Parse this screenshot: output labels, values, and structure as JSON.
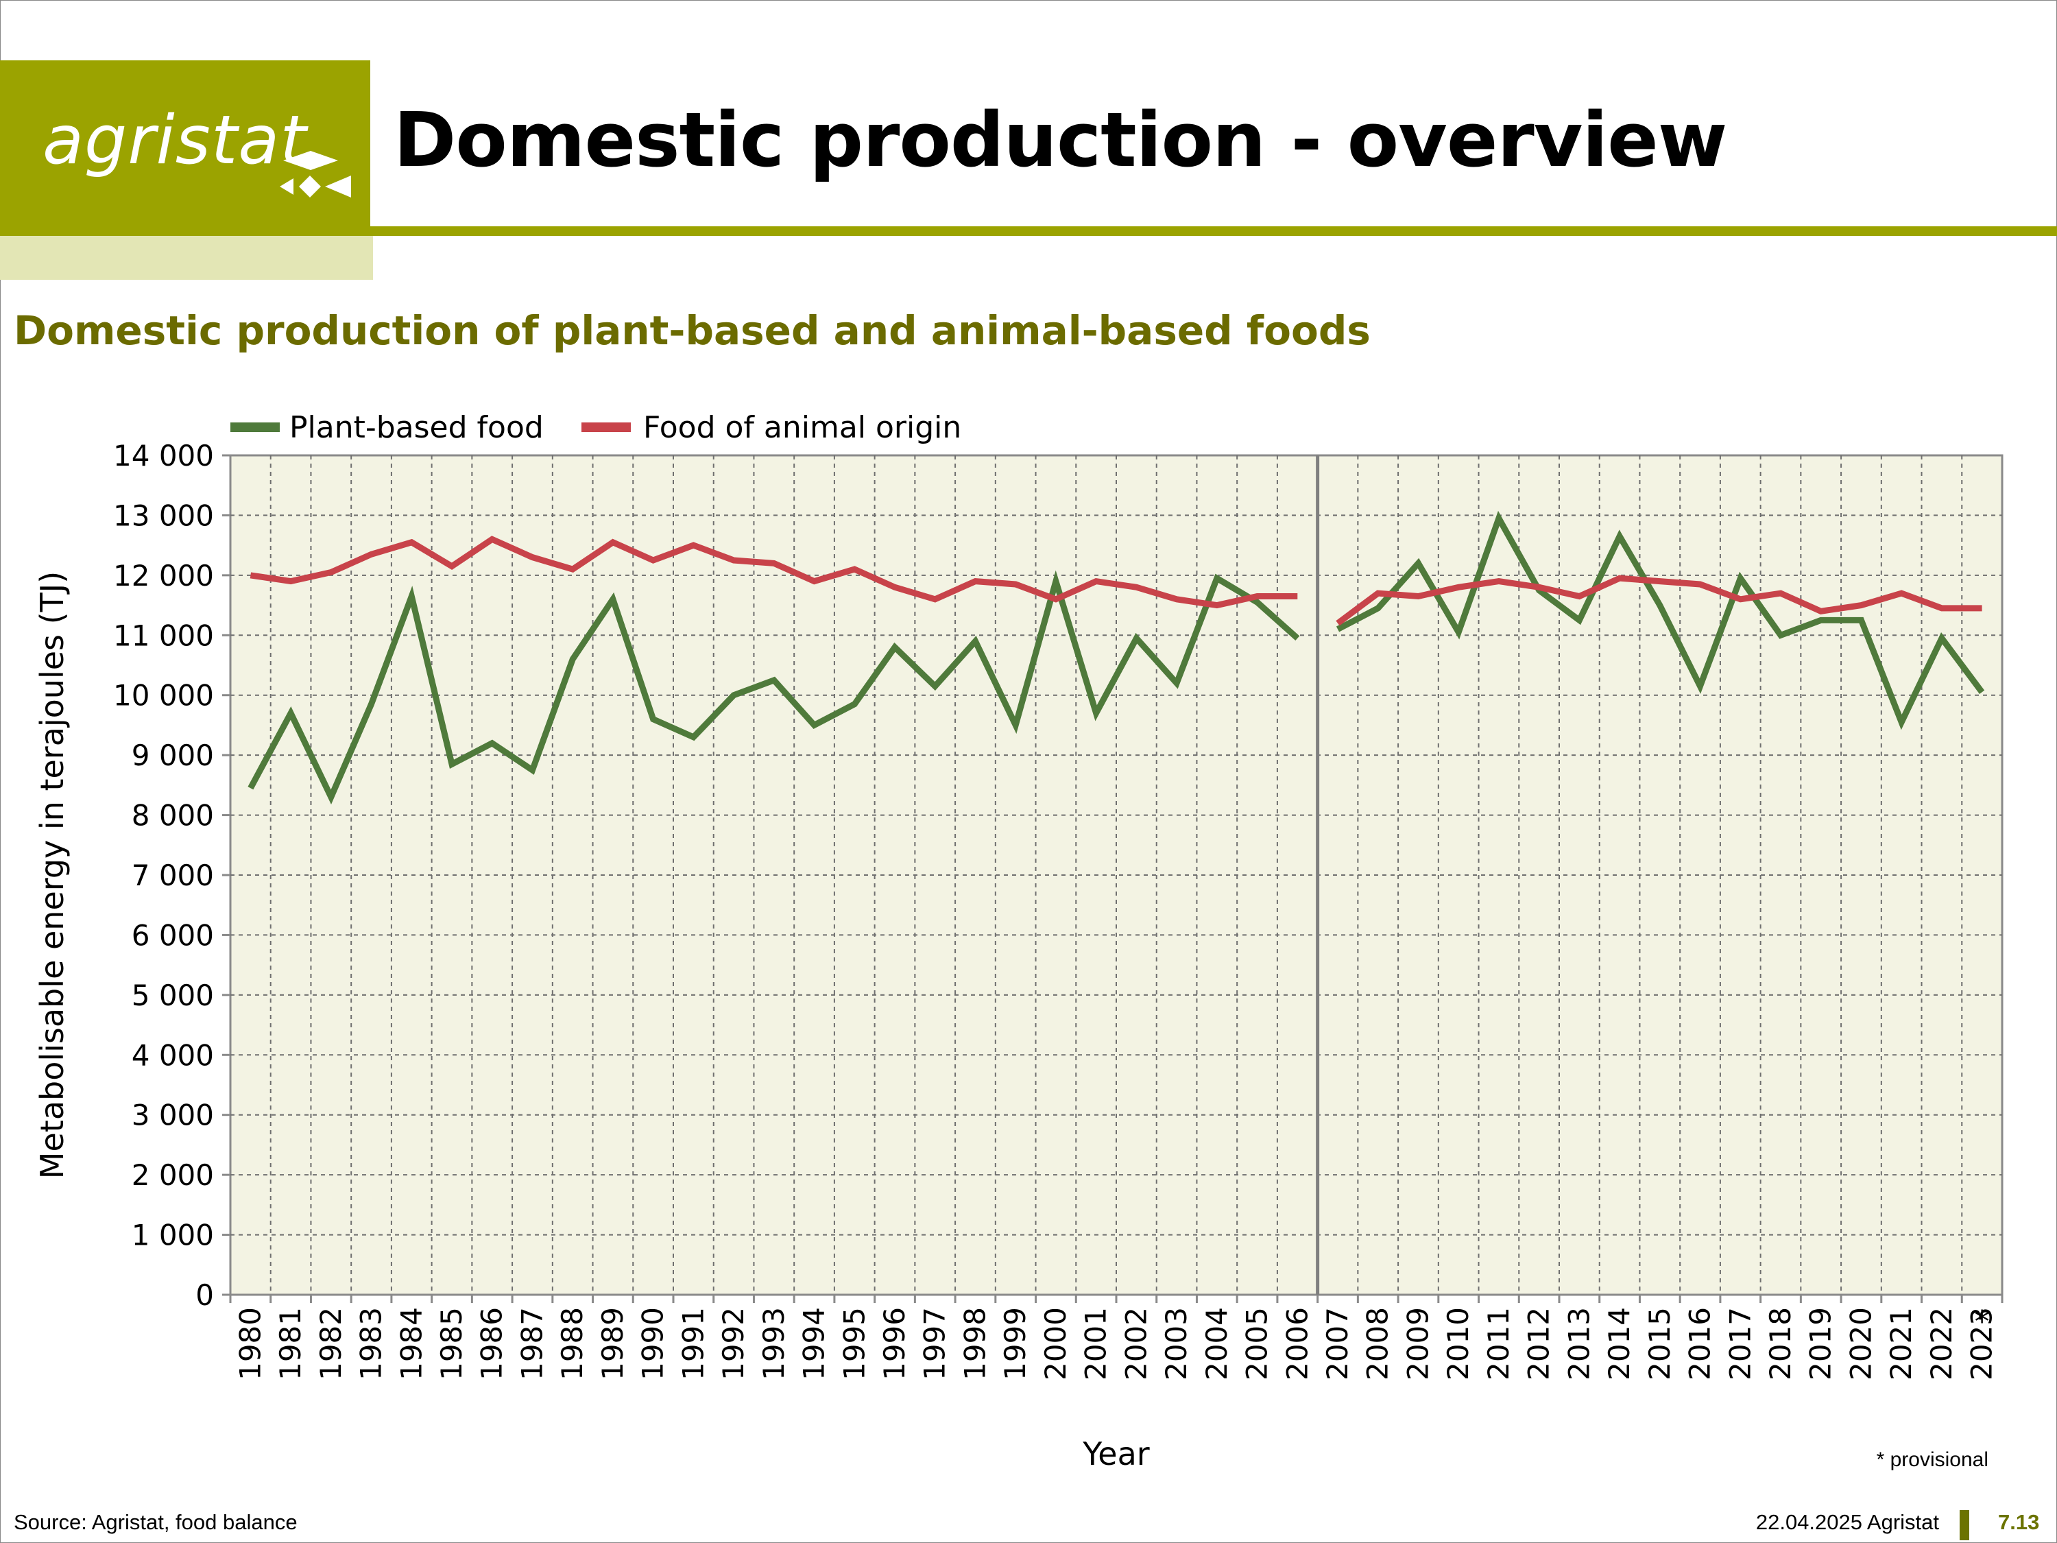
{
  "header": {
    "logo_text": "agristat",
    "title": "Domestic production - overview",
    "subtitle": "Domestic production of plant-based and animal-based foods"
  },
  "footer": {
    "source": "Source: Agristat, food balance",
    "date": "22.04.2025 Agristat",
    "page_number": "7.13"
  },
  "colors": {
    "brand": "#9ba300",
    "plant": "#4f7a3b",
    "animal": "#c8434a",
    "plot_bg": "#f3f3e3"
  },
  "chart_data": {
    "type": "line",
    "title": "Domestic production of plant-based and animal-based foods",
    "xlabel": "Year",
    "ylabel": "Metabolisable energy in terajoules (TJ)",
    "ylim": [
      0,
      14000
    ],
    "yticks": [
      "0",
      "1 000",
      "2 000",
      "3 000",
      "4 000",
      "5 000",
      "6 000",
      "7 000",
      "8 000",
      "9 000",
      "10 000",
      "11 000",
      "12 000",
      "13 000",
      "14 000"
    ],
    "grid": true,
    "legend": "top-left",
    "break_after": "2006",
    "note": "* provisional",
    "x": [
      "1980",
      "1981",
      "1982",
      "1983",
      "1984",
      "1985",
      "1986",
      "1987",
      "1988",
      "1989",
      "1990",
      "1991",
      "1992",
      "1993",
      "1994",
      "1995",
      "1996",
      "1997",
      "1998",
      "1999",
      "2000",
      "2001",
      "2002",
      "2003",
      "2004",
      "2005",
      "2006",
      "2007",
      "2008",
      "2009",
      "2010",
      "2011",
      "2012",
      "2013",
      "2014",
      "2015",
      "2016",
      "2017",
      "2018",
      "2019",
      "2020",
      "2021",
      "2022",
      "2023"
    ],
    "x_marks": {
      "2023": "*"
    },
    "series": [
      {
        "name": "Plant-based food",
        "values": [
          8450,
          9700,
          8300,
          9850,
          11650,
          8850,
          9200,
          8750,
          10600,
          11600,
          9600,
          9300,
          10000,
          10250,
          9500,
          9850,
          10800,
          10150,
          10900,
          9500,
          11900,
          9700,
          10950,
          10200,
          11950,
          11550,
          10950,
          11100,
          11450,
          12200,
          11050,
          12950,
          11750,
          11250,
          12650,
          11500,
          10150,
          11950,
          11000,
          11250,
          11250,
          9550,
          10950,
          10050
        ]
      },
      {
        "name": "Food of animal origin",
        "values": [
          12000,
          11900,
          12050,
          12350,
          12550,
          12150,
          12600,
          12300,
          12100,
          12550,
          12250,
          12500,
          12250,
          12200,
          11900,
          12100,
          11800,
          11600,
          11900,
          11850,
          11600,
          11900,
          11800,
          11600,
          11500,
          11650,
          11650,
          11200,
          11700,
          11650,
          11800,
          11900,
          11800,
          11650,
          11950,
          11900,
          11850,
          11600,
          11700,
          11400,
          11500,
          11700,
          11450,
          11450
        ]
      }
    ]
  }
}
